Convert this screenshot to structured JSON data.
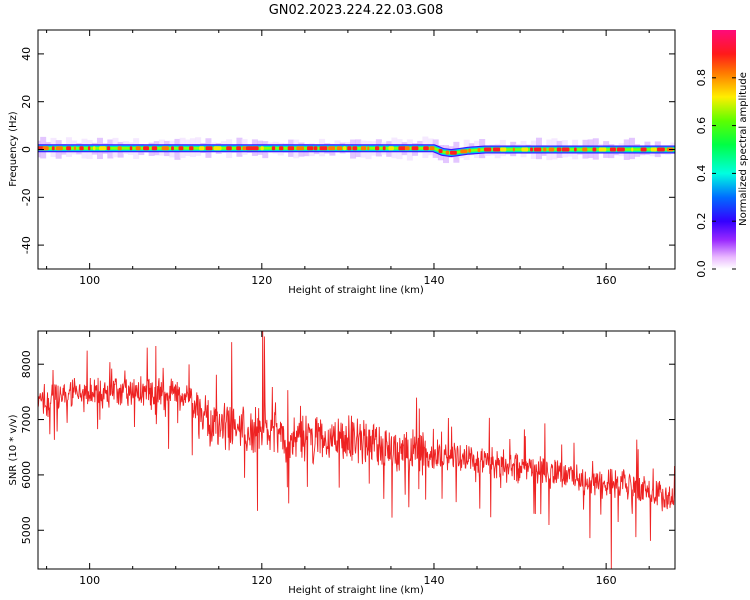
{
  "title": "GN02.2023.224.22.03.G08",
  "colors": {
    "snr_line": "#ee2222",
    "frame": "#000000",
    "background": "#ffffff"
  },
  "chart_data": [
    {
      "type": "heatmap",
      "name": "spectrogram",
      "xlabel": "Height of straight line (km)",
      "ylabel": "Frequency (Hz)",
      "xlim": [
        94,
        168
      ],
      "ylim": [
        -50,
        50
      ],
      "xticks": [
        100,
        120,
        140,
        160
      ],
      "yticks": [
        -40,
        -20,
        0,
        20,
        40
      ],
      "colorbar": {
        "label": "Normalized spectral amplitude",
        "range": [
          0.0,
          1.0
        ],
        "ticks": [
          0.0,
          0.2,
          0.4,
          0.6,
          0.8
        ],
        "colormap": "gist_rainbow_r"
      },
      "ridge": {
        "description_values": "dominant frequency near 0 Hz across the whole range",
        "x": [
          94,
          100,
          110,
          120,
          130,
          140,
          141,
          142,
          144,
          146,
          150,
          155,
          160,
          165,
          168
        ],
        "frequency_hz": [
          0.5,
          0.5,
          0.5,
          0.5,
          0.5,
          0.5,
          -1.0,
          -1.5,
          -0.5,
          0.0,
          0.0,
          0.0,
          0.0,
          0.0,
          0.0
        ]
      }
    },
    {
      "type": "line",
      "name": "snr",
      "xlabel": "Height of straight line (km)",
      "ylabel": "SNR (10 * v/v)",
      "xlim": [
        94,
        168
      ],
      "ylim": [
        4300,
        8600
      ],
      "xticks": [
        100,
        120,
        140,
        160
      ],
      "yticks": [
        5000,
        6000,
        7000,
        8000
      ],
      "trend": {
        "x": [
          94,
          96,
          100,
          105,
          110,
          112,
          113,
          115,
          118,
          120,
          125,
          130,
          135,
          140,
          145,
          150,
          155,
          160,
          165,
          168
        ],
        "y": [
          7300,
          7450,
          7450,
          7500,
          7450,
          7350,
          7050,
          6850,
          6800,
          6750,
          6650,
          6600,
          6500,
          6400,
          6250,
          6150,
          6000,
          5850,
          5700,
          5600
        ]
      },
      "spikes": [
        {
          "x": 120.1,
          "y": 8800
        },
        {
          "x": 120.3,
          "y": 8500
        },
        {
          "x": 116.5,
          "y": 8400
        },
        {
          "x": 119.5,
          "y": 5350
        },
        {
          "x": 160.6,
          "y": 4300
        }
      ]
    }
  ]
}
